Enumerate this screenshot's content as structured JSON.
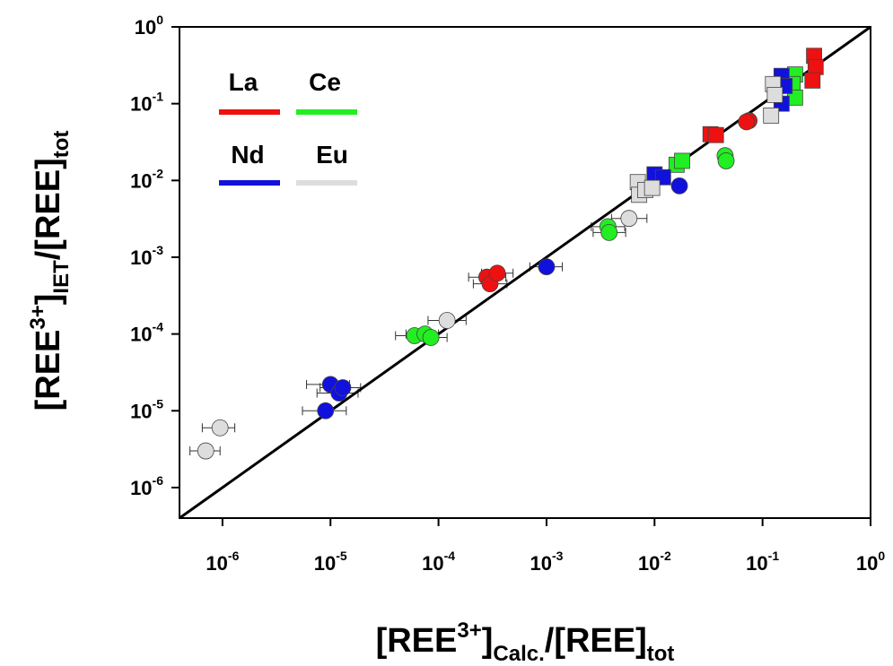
{
  "chart_data": {
    "type": "scatter",
    "xscale": "log",
    "yscale": "log",
    "xlim": [
      4e-07,
      1
    ],
    "ylim": [
      4e-07,
      1
    ],
    "xlabel": {
      "main": "[REE",
      "sup": "3+",
      "close": "]",
      "sub": "Calc.",
      "rest": "/[REE]",
      "sub2": "tot"
    },
    "ylabel": {
      "main": "[REE",
      "sup": "3+",
      "close": "]",
      "sub": "IET",
      "rest": "/[REE]",
      "sub2": "tot"
    },
    "x_ticks": [
      {
        "base": "10",
        "exp": "-6"
      },
      {
        "base": "10",
        "exp": "-5"
      },
      {
        "base": "10",
        "exp": "-4"
      },
      {
        "base": "10",
        "exp": "-3"
      },
      {
        "base": "10",
        "exp": "-2"
      },
      {
        "base": "10",
        "exp": "-1"
      },
      {
        "base": "10",
        "exp": "0"
      }
    ],
    "y_ticks": [
      {
        "base": "10",
        "exp": "-6"
      },
      {
        "base": "10",
        "exp": "-5"
      },
      {
        "base": "10",
        "exp": "-4"
      },
      {
        "base": "10",
        "exp": "-3"
      },
      {
        "base": "10",
        "exp": "-2"
      },
      {
        "base": "10",
        "exp": "-1"
      },
      {
        "base": "10",
        "exp": "0"
      }
    ],
    "reference_line": "1:1",
    "grid": false,
    "legend_placement": "top-left",
    "series": [
      {
        "name": "La",
        "color": "#ee1111",
        "points": [
          {
            "x": 0.00028,
            "y": 0.00055,
            "shape": "circle",
            "err_low": 0.00019,
            "err_high": 0.00042
          },
          {
            "x": 0.0003,
            "y": 0.00045,
            "shape": "circle",
            "err_low": 0.00021,
            "err_high": 0.00043
          },
          {
            "x": 0.00035,
            "y": 0.00062,
            "shape": "circle",
            "err_low": 0.00025,
            "err_high": 0.00049
          },
          {
            "x": 0.075,
            "y": 0.06,
            "shape": "circle"
          },
          {
            "x": 0.071,
            "y": 0.058,
            "shape": "circle"
          },
          {
            "x": 0.033,
            "y": 0.04,
            "shape": "square"
          },
          {
            "x": 0.037,
            "y": 0.039,
            "shape": "square"
          },
          {
            "x": 0.3,
            "y": 0.42,
            "shape": "square"
          },
          {
            "x": 0.31,
            "y": 0.3,
            "shape": "square"
          },
          {
            "x": 0.29,
            "y": 0.2,
            "shape": "square"
          }
        ]
      },
      {
        "name": "Ce",
        "color": "#22ee22",
        "points": [
          {
            "x": 6e-05,
            "y": 9.5e-05,
            "shape": "circle",
            "err_low": 4e-05,
            "err_high": 9e-05
          },
          {
            "x": 7.5e-05,
            "y": 0.0001,
            "shape": "circle",
            "err_low": 5e-05,
            "err_high": 0.0001
          },
          {
            "x": 8.5e-05,
            "y": 9e-05,
            "shape": "circle",
            "err_low": 6e-05,
            "err_high": 0.00012
          },
          {
            "x": 0.0037,
            "y": 0.0025,
            "shape": "circle",
            "err_low": 0.0026,
            "err_high": 0.0053
          },
          {
            "x": 0.0038,
            "y": 0.0021,
            "shape": "circle",
            "err_low": 0.0027,
            "err_high": 0.0054
          },
          {
            "x": 0.045,
            "y": 0.021,
            "shape": "circle"
          },
          {
            "x": 0.046,
            "y": 0.018,
            "shape": "circle"
          },
          {
            "x": 0.016,
            "y": 0.016,
            "shape": "square"
          },
          {
            "x": 0.018,
            "y": 0.018,
            "shape": "square"
          },
          {
            "x": 0.2,
            "y": 0.24,
            "shape": "square"
          },
          {
            "x": 0.19,
            "y": 0.18,
            "shape": "square"
          },
          {
            "x": 0.2,
            "y": 0.12,
            "shape": "square"
          }
        ]
      },
      {
        "name": "Nd",
        "color": "#1111dd",
        "points": [
          {
            "x": 9e-06,
            "y": 1e-05,
            "shape": "circle",
            "err_low": 5.5e-06,
            "err_high": 1.4e-05
          },
          {
            "x": 1e-05,
            "y": 2.2e-05,
            "shape": "circle",
            "err_low": 6e-06,
            "err_high": 1.5e-05
          },
          {
            "x": 1.2e-05,
            "y": 1.7e-05,
            "shape": "circle",
            "err_low": 7.5e-06,
            "err_high": 1.8e-05
          },
          {
            "x": 1.3e-05,
            "y": 2e-05,
            "shape": "circle",
            "err_low": 8e-06,
            "err_high": 1.9e-05
          },
          {
            "x": 0.001,
            "y": 0.00075,
            "shape": "circle",
            "err_low": 0.0007,
            "err_high": 0.0014
          },
          {
            "x": 0.017,
            "y": 0.0085,
            "shape": "circle"
          },
          {
            "x": 0.01,
            "y": 0.012,
            "shape": "square"
          },
          {
            "x": 0.012,
            "y": 0.011,
            "shape": "square"
          },
          {
            "x": 0.15,
            "y": 0.23,
            "shape": "square"
          },
          {
            "x": 0.16,
            "y": 0.17,
            "shape": "square"
          },
          {
            "x": 0.15,
            "y": 0.1,
            "shape": "square"
          }
        ]
      },
      {
        "name": "Eu",
        "color": "#dddddd",
        "points": [
          {
            "x": 7e-07,
            "y": 3e-06,
            "shape": "circle",
            "err_low": 5e-07,
            "err_high": 9.5e-07
          },
          {
            "x": 9.5e-07,
            "y": 6e-06,
            "shape": "circle",
            "err_low": 6.5e-07,
            "err_high": 1.3e-06
          },
          {
            "x": 0.00012,
            "y": 0.00015,
            "shape": "circle",
            "err_low": 8e-05,
            "err_high": 0.00018
          },
          {
            "x": 0.0058,
            "y": 0.0032,
            "shape": "circle",
            "err_low": 0.004,
            "err_high": 0.0085
          },
          {
            "x": 0.007,
            "y": 0.0095,
            "shape": "square"
          },
          {
            "x": 0.0072,
            "y": 0.0065,
            "shape": "square"
          },
          {
            "x": 0.0082,
            "y": 0.0075,
            "shape": "square"
          },
          {
            "x": 0.0095,
            "y": 0.008,
            "shape": "square"
          },
          {
            "x": 0.125,
            "y": 0.18,
            "shape": "square"
          },
          {
            "x": 0.13,
            "y": 0.13,
            "shape": "square"
          },
          {
            "x": 0.12,
            "y": 0.07,
            "shape": "square"
          }
        ]
      }
    ]
  }
}
